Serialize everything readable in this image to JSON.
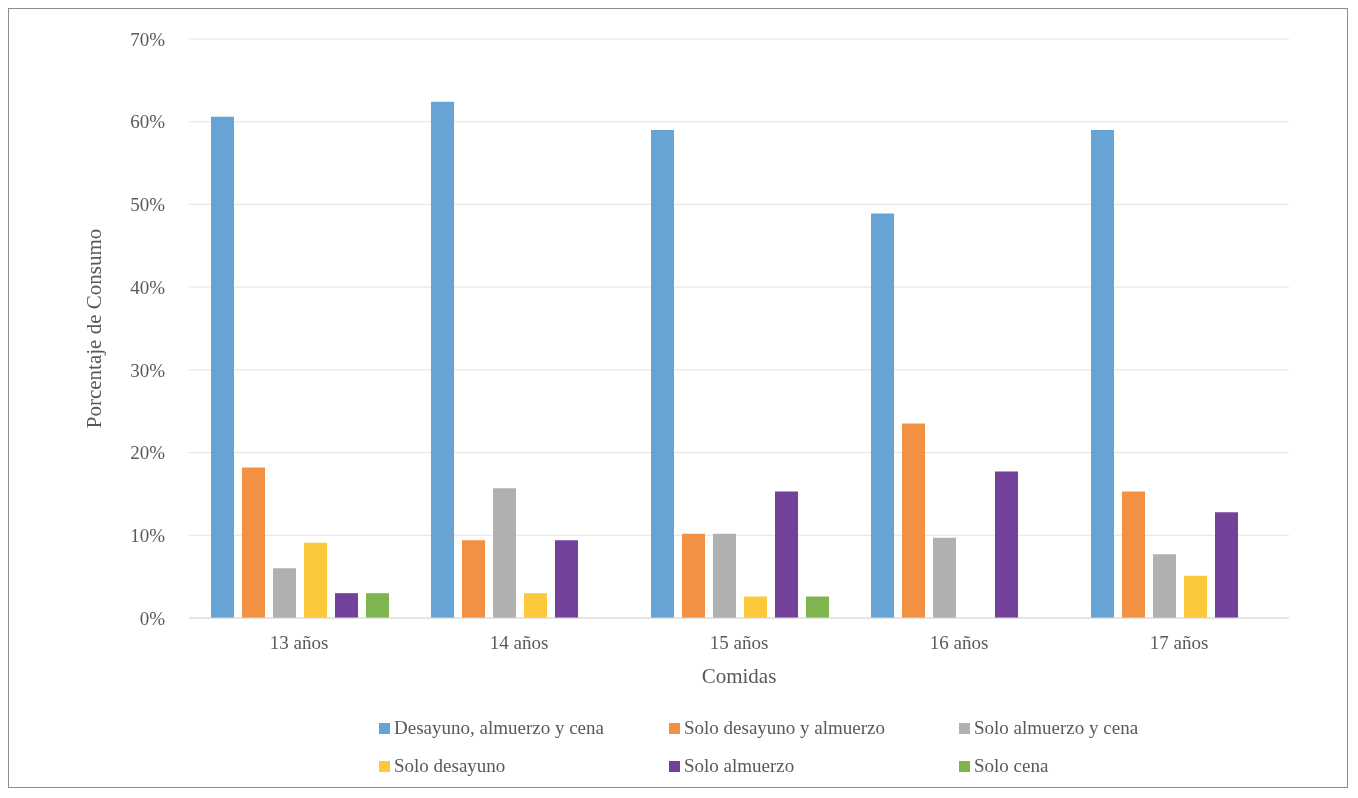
{
  "chart_data": {
    "type": "bar",
    "xlabel": "Comidas",
    "ylabel": "Porcentaje de Consumo",
    "categories": [
      "13 años",
      "14 años",
      "15 años",
      "16 años",
      "17 años"
    ],
    "series": [
      {
        "name": "Desayuno, almuerzo y cena",
        "color": "#68a3d5",
        "values": [
          60.6,
          62.4,
          59.0,
          48.9,
          59.0
        ]
      },
      {
        "name": "Solo desayuno y almuerzo",
        "color": "#f39142",
        "values": [
          18.2,
          9.4,
          10.2,
          23.5,
          15.3
        ]
      },
      {
        "name": "Solo almuerzo y cena",
        "color": "#b0b0ae",
        "values": [
          6.0,
          15.7,
          10.2,
          9.7,
          7.7
        ]
      },
      {
        "name": "Solo desayuno",
        "color": "#fdc93c",
        "values": [
          9.1,
          3.0,
          2.6,
          0,
          5.1
        ]
      },
      {
        "name": "Solo almuerzo",
        "color": "#734199",
        "values": [
          3.0,
          9.4,
          15.3,
          17.7,
          12.8
        ]
      },
      {
        "name": "Solo cena",
        "color": "#7fb54e",
        "values": [
          3.0,
          0,
          2.6,
          0,
          0
        ]
      }
    ],
    "ylim": [
      0,
      70
    ],
    "yticks": [
      {
        "value": 0,
        "label": "0%"
      },
      {
        "value": 10,
        "label": "10%"
      },
      {
        "value": 20,
        "label": "20%"
      },
      {
        "value": 30,
        "label": "30%"
      },
      {
        "value": 40,
        "label": "40%"
      },
      {
        "value": 50,
        "label": "50%"
      },
      {
        "value": 60,
        "label": "60%"
      },
      {
        "value": 70,
        "label": "70%"
      }
    ],
    "grid": "y",
    "legend": "bottom"
  }
}
